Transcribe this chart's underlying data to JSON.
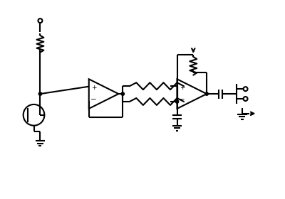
{
  "bg_color": "#ffffff",
  "line_color": "#000000",
  "lw": 1.5,
  "fig_width": 4.0,
  "fig_height": 2.8,
  "dpi": 100,
  "xlim": [
    0,
    400
  ],
  "ylim": [
    0,
    280
  ]
}
